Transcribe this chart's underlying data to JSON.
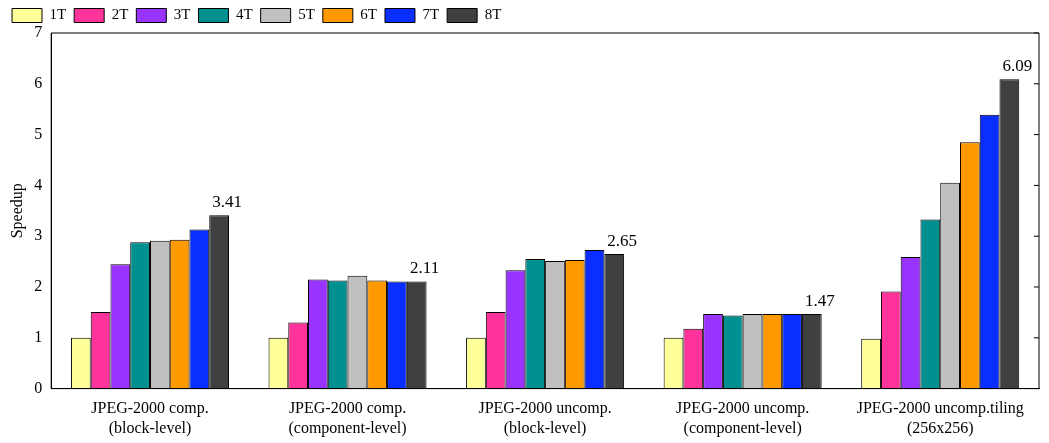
{
  "chart_data": {
    "type": "bar",
    "ylabel": "Speedup",
    "categories": [
      "JPEG-2000 comp.\n(block-level)",
      "JPEG-2000 comp.\n(component-level)",
      "JPEG-2000 uncomp.\n(block-level)",
      "JPEG-2000 uncomp.\n(component-level)",
      "JPEG-2000 uncomp.tiling\n(256x256)"
    ],
    "series": [
      {
        "name": "1T",
        "color": "#ffff99",
        "values": [
          1.0,
          1.0,
          1.0,
          1.0,
          0.98
        ]
      },
      {
        "name": "2T",
        "color": "#ff3399",
        "values": [
          1.51,
          1.3,
          1.51,
          1.18,
          1.91
        ]
      },
      {
        "name": "3T",
        "color": "#9933ff",
        "values": [
          2.45,
          2.15,
          2.33,
          1.47,
          2.59
        ]
      },
      {
        "name": "4T",
        "color": "#009090",
        "values": [
          2.88,
          2.13,
          2.55,
          1.44,
          3.33
        ]
      },
      {
        "name": "5T",
        "color": "#c0c0c0",
        "values": [
          2.91,
          2.22,
          2.51,
          1.47,
          4.05
        ]
      },
      {
        "name": "6T",
        "color": "#ff9900",
        "values": [
          2.93,
          2.13,
          2.53,
          1.47,
          4.85
        ]
      },
      {
        "name": "7T",
        "color": "#0a2eff",
        "values": [
          3.13,
          2.11,
          2.73,
          1.47,
          5.39
        ]
      },
      {
        "name": "8T",
        "color": "#404040",
        "values": [
          3.41,
          2.11,
          2.65,
          1.47,
          6.09
        ],
        "value_labels": [
          "3.41",
          "2.11",
          "2.65",
          "1.47",
          "6.09"
        ]
      }
    ],
    "ylim": [
      0,
      7
    ],
    "yticks": [
      0,
      1,
      2,
      3,
      4,
      5,
      6,
      7
    ],
    "grid": false,
    "legend": "top left"
  }
}
